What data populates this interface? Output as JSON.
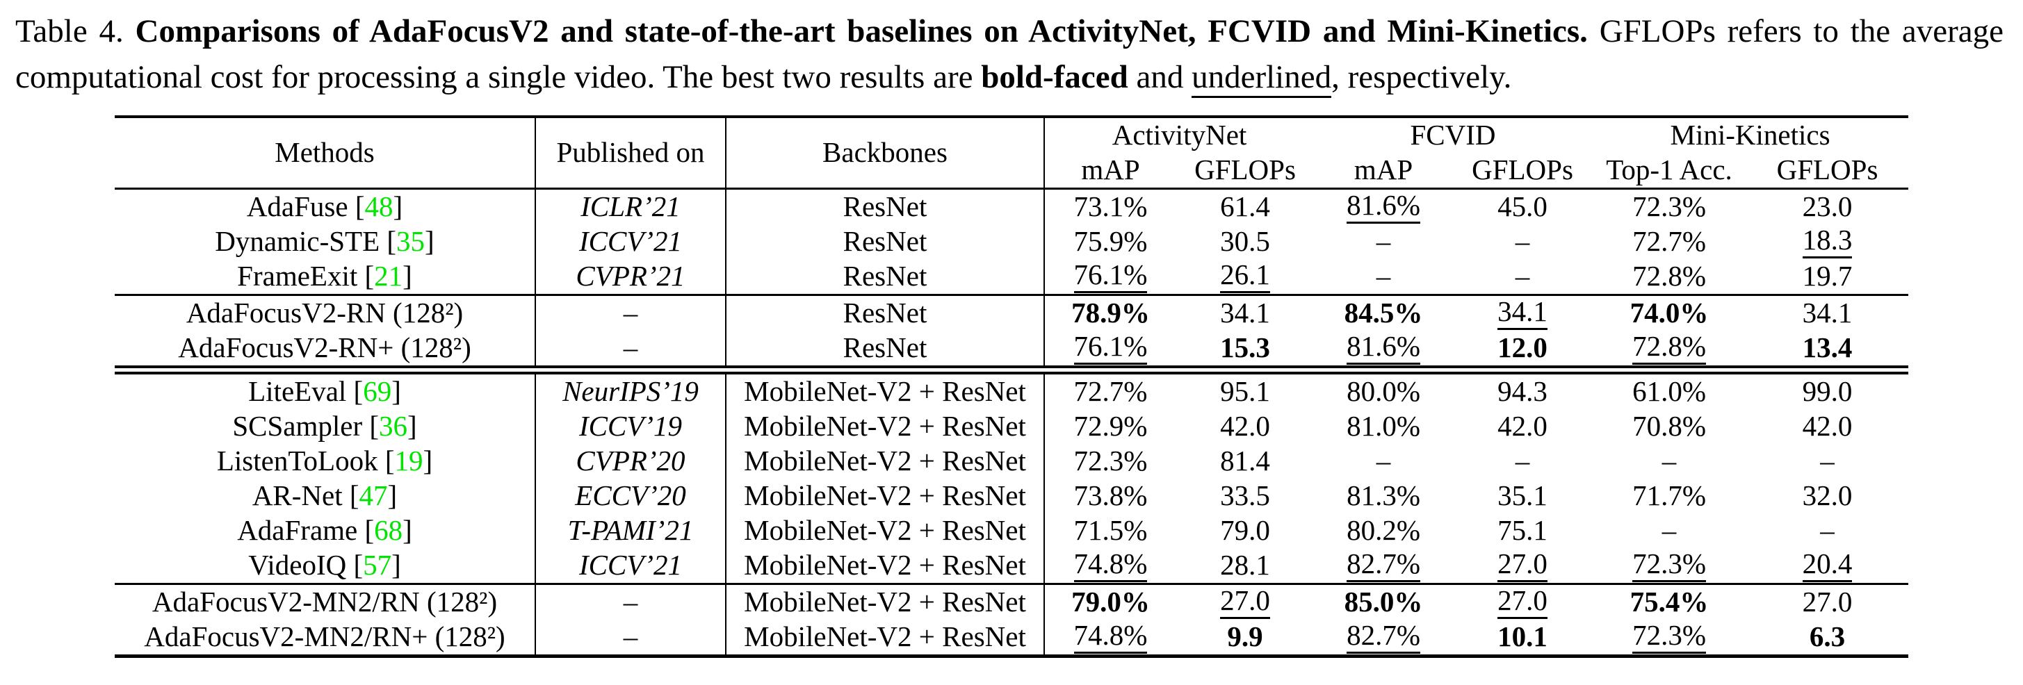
{
  "page": {
    "background_color": "#ffffff",
    "text_color": "#000000",
    "citation_color": "#00e400",
    "rule_color": "#000000"
  },
  "caption": {
    "runs": [
      {
        "text": "Table 4. ",
        "style": ""
      },
      {
        "text": "Comparisons of AdaFocusV2 and state-of-the-art baselines on ActivityNet, FCVID and Mini-Kinetics.",
        "style": "b"
      },
      {
        "text": " GFLOPs refers to the average computational cost for processing a single video. The best two results are ",
        "style": ""
      },
      {
        "text": "bold-faced",
        "style": "b"
      },
      {
        "text": " and ",
        "style": ""
      },
      {
        "text": "underlined",
        "style": "u"
      },
      {
        "text": ", respectively.",
        "style": ""
      }
    ]
  },
  "table": {
    "col_headers": {
      "methods": "Methods",
      "published": "Published on",
      "backbones": "Backbones",
      "groups": [
        {
          "label": "ActivityNet",
          "sub": [
            "mAP",
            "GFLOPs"
          ]
        },
        {
          "label": "FCVID",
          "sub": [
            "mAP",
            "GFLOPs"
          ]
        },
        {
          "label": "Mini-Kinetics",
          "sub": [
            "Top-1 Acc.",
            "GFLOPs"
          ]
        }
      ]
    },
    "groups": [
      {
        "name": "baselines-resnet",
        "rule_after": "single",
        "rows": [
          {
            "method_pre": "AdaFuse [",
            "cite": "48",
            "method_post": "]",
            "published": "ICLR’21",
            "published_italic": true,
            "backbone": "ResNet",
            "values": [
              {
                "text": "73.1%",
                "style": ""
              },
              {
                "text": "61.4",
                "style": ""
              },
              {
                "text": "81.6%",
                "style": "u"
              },
              {
                "text": "45.0",
                "style": ""
              },
              {
                "text": "72.3%",
                "style": ""
              },
              {
                "text": "23.0",
                "style": ""
              }
            ]
          },
          {
            "method_pre": "Dynamic-STE [",
            "cite": "35",
            "method_post": "]",
            "published": "ICCV’21",
            "published_italic": true,
            "backbone": "ResNet",
            "values": [
              {
                "text": "75.9%",
                "style": ""
              },
              {
                "text": "30.5",
                "style": ""
              },
              {
                "text": "–",
                "style": ""
              },
              {
                "text": "–",
                "style": ""
              },
              {
                "text": "72.7%",
                "style": ""
              },
              {
                "text": "18.3",
                "style": "u"
              }
            ]
          },
          {
            "method_pre": "FrameExit [",
            "cite": "21",
            "method_post": "]",
            "published": "CVPR’21",
            "published_italic": true,
            "backbone": "ResNet",
            "values": [
              {
                "text": "76.1%",
                "style": "u"
              },
              {
                "text": "26.1",
                "style": "u"
              },
              {
                "text": "–",
                "style": ""
              },
              {
                "text": "–",
                "style": ""
              },
              {
                "text": "72.8%",
                "style": ""
              },
              {
                "text": "19.7",
                "style": ""
              }
            ]
          }
        ]
      },
      {
        "name": "adafocus-rn",
        "rule_after": "double",
        "rows": [
          {
            "method_pre": "AdaFocusV2-RN (128²)",
            "cite": "",
            "method_post": "",
            "published": "–",
            "published_italic": false,
            "backbone": "ResNet",
            "values": [
              {
                "text": "78.9%",
                "style": "b"
              },
              {
                "text": "34.1",
                "style": ""
              },
              {
                "text": "84.5%",
                "style": "b"
              },
              {
                "text": "34.1",
                "style": "u"
              },
              {
                "text": "74.0%",
                "style": "b"
              },
              {
                "text": "34.1",
                "style": ""
              }
            ]
          },
          {
            "method_pre": "AdaFocusV2-RN+ (128²)",
            "cite": "",
            "method_post": "",
            "published": "–",
            "published_italic": false,
            "backbone": "ResNet",
            "values": [
              {
                "text": "76.1%",
                "style": "u"
              },
              {
                "text": "15.3",
                "style": "b"
              },
              {
                "text": "81.6%",
                "style": "u"
              },
              {
                "text": "12.0",
                "style": "b"
              },
              {
                "text": "72.8%",
                "style": "u"
              },
              {
                "text": "13.4",
                "style": "b"
              }
            ]
          }
        ]
      },
      {
        "name": "baselines-mobilenet",
        "rule_after": "single",
        "rows": [
          {
            "method_pre": "LiteEval [",
            "cite": "69",
            "method_post": "]",
            "published": "NeurIPS’19",
            "published_italic": true,
            "backbone": "MobileNet-V2 + ResNet",
            "values": [
              {
                "text": "72.7%",
                "style": ""
              },
              {
                "text": "95.1",
                "style": ""
              },
              {
                "text": "80.0%",
                "style": ""
              },
              {
                "text": "94.3",
                "style": ""
              },
              {
                "text": "61.0%",
                "style": ""
              },
              {
                "text": "99.0",
                "style": ""
              }
            ]
          },
          {
            "method_pre": "SCSampler [",
            "cite": "36",
            "method_post": "]",
            "published": "ICCV’19",
            "published_italic": true,
            "backbone": "MobileNet-V2 + ResNet",
            "values": [
              {
                "text": "72.9%",
                "style": ""
              },
              {
                "text": "42.0",
                "style": ""
              },
              {
                "text": "81.0%",
                "style": ""
              },
              {
                "text": "42.0",
                "style": ""
              },
              {
                "text": "70.8%",
                "style": ""
              },
              {
                "text": "42.0",
                "style": ""
              }
            ]
          },
          {
            "method_pre": "ListenToLook [",
            "cite": "19",
            "method_post": "]",
            "published": "CVPR’20",
            "published_italic": true,
            "backbone": "MobileNet-V2 + ResNet",
            "values": [
              {
                "text": "72.3%",
                "style": ""
              },
              {
                "text": "81.4",
                "style": ""
              },
              {
                "text": "–",
                "style": ""
              },
              {
                "text": "–",
                "style": ""
              },
              {
                "text": "–",
                "style": ""
              },
              {
                "text": "–",
                "style": ""
              }
            ]
          },
          {
            "method_pre": "AR-Net [",
            "cite": "47",
            "method_post": "]",
            "published": "ECCV’20",
            "published_italic": true,
            "backbone": "MobileNet-V2 + ResNet",
            "values": [
              {
                "text": "73.8%",
                "style": ""
              },
              {
                "text": "33.5",
                "style": ""
              },
              {
                "text": "81.3%",
                "style": ""
              },
              {
                "text": "35.1",
                "style": ""
              },
              {
                "text": "71.7%",
                "style": ""
              },
              {
                "text": "32.0",
                "style": ""
              }
            ]
          },
          {
            "method_pre": "AdaFrame [",
            "cite": "68",
            "method_post": "]",
            "published": "T-PAMI’21",
            "published_italic": true,
            "backbone": "MobileNet-V2 + ResNet",
            "values": [
              {
                "text": "71.5%",
                "style": ""
              },
              {
                "text": "79.0",
                "style": ""
              },
              {
                "text": "80.2%",
                "style": ""
              },
              {
                "text": "75.1",
                "style": ""
              },
              {
                "text": "–",
                "style": ""
              },
              {
                "text": "–",
                "style": ""
              }
            ]
          },
          {
            "method_pre": "VideoIQ [",
            "cite": "57",
            "method_post": "]",
            "published": "ICCV’21",
            "published_italic": true,
            "backbone": "MobileNet-V2 + ResNet",
            "values": [
              {
                "text": "74.8%",
                "style": "u"
              },
              {
                "text": "28.1",
                "style": ""
              },
              {
                "text": "82.7%",
                "style": "u"
              },
              {
                "text": "27.0",
                "style": "u"
              },
              {
                "text": "72.3%",
                "style": "u"
              },
              {
                "text": "20.4",
                "style": "u"
              }
            ]
          }
        ]
      },
      {
        "name": "adafocus-mn2",
        "rule_after": "bottom",
        "rows": [
          {
            "method_pre": "AdaFocusV2-MN2/RN (128²)",
            "cite": "",
            "method_post": "",
            "published": "–",
            "published_italic": false,
            "backbone": "MobileNet-V2 + ResNet",
            "values": [
              {
                "text": "79.0%",
                "style": "b"
              },
              {
                "text": "27.0",
                "style": "u"
              },
              {
                "text": "85.0%",
                "style": "b"
              },
              {
                "text": "27.0",
                "style": "u"
              },
              {
                "text": "75.4%",
                "style": "b"
              },
              {
                "text": "27.0",
                "style": ""
              }
            ]
          },
          {
            "method_pre": "AdaFocusV2-MN2/RN+ (128²)",
            "cite": "",
            "method_post": "",
            "published": "–",
            "published_italic": false,
            "backbone": "MobileNet-V2 + ResNet",
            "values": [
              {
                "text": "74.8%",
                "style": "u"
              },
              {
                "text": "9.9",
                "style": "b"
              },
              {
                "text": "82.7%",
                "style": "u"
              },
              {
                "text": "10.1",
                "style": "b"
              },
              {
                "text": "72.3%",
                "style": "u"
              },
              {
                "text": "6.3",
                "style": "b"
              }
            ]
          }
        ]
      }
    ]
  }
}
